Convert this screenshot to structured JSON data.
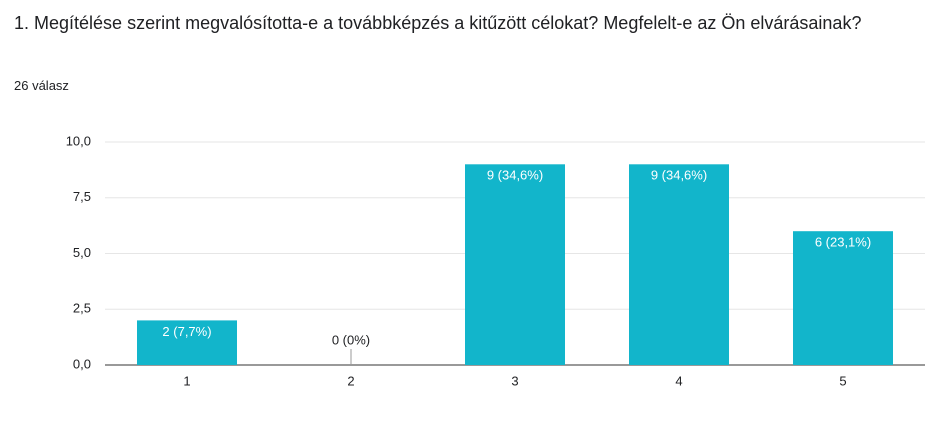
{
  "chart_data": {
    "type": "bar",
    "title": "1. Megítélése szerint megvalósította-e a továbbképzés a kitűzött célokat? Megfelelt-e az Ön elvárásainak?",
    "subtitle": "26 válasz",
    "categories": [
      "1",
      "2",
      "3",
      "4",
      "5"
    ],
    "values": [
      2,
      0,
      9,
      9,
      6
    ],
    "value_labels": [
      "2 (7,7%)",
      "0 (0%)",
      "9 (34,6%)",
      "9 (34,6%)",
      "6 (23,1%)"
    ],
    "color": "#12b5cb",
    "ylim": [
      0,
      10
    ],
    "yticks": [
      {
        "value": 0,
        "label": "0,0"
      },
      {
        "value": 2.5,
        "label": "2,5"
      },
      {
        "value": 5,
        "label": "5,0"
      },
      {
        "value": 7.5,
        "label": "7,5"
      },
      {
        "value": 10,
        "label": "10,0"
      }
    ],
    "grid": true
  }
}
